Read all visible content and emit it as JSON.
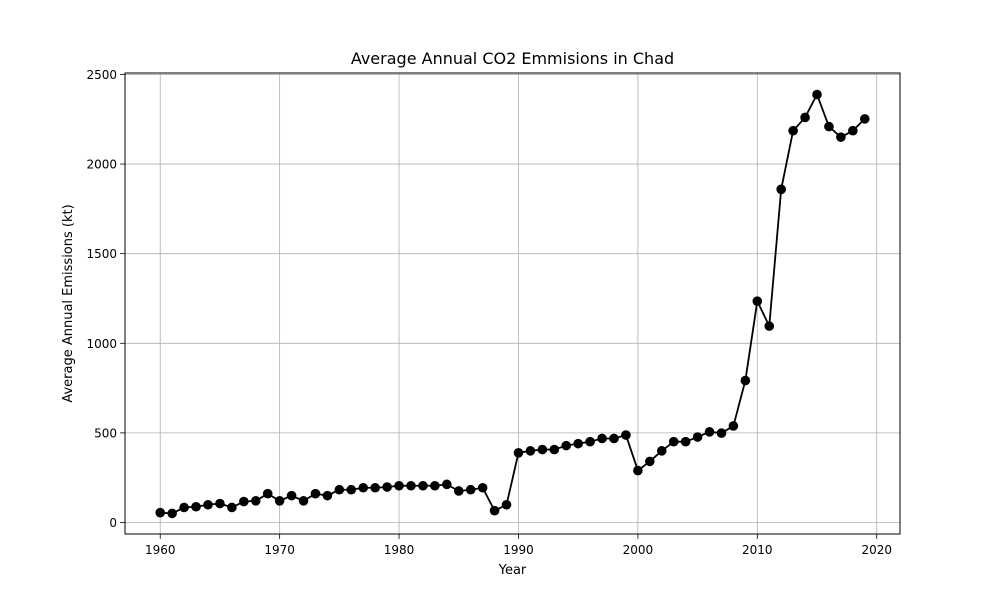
{
  "chart_data": {
    "type": "line",
    "title": "Average Annual CO2 Emmisions in Chad",
    "xlabel": "Year",
    "ylabel": "Average Annual Emissions (kt)",
    "xlim": [
      1957.05,
      2021.95
    ],
    "ylim": [
      -64,
      2508
    ],
    "grid": true,
    "x_ticks": [
      1960,
      1970,
      1980,
      1990,
      2000,
      2010,
      2020
    ],
    "y_ticks": [
      0,
      500,
      1000,
      1500,
      2000,
      2500
    ],
    "x_tick_labels": [
      "1960",
      "1970",
      "1980",
      "1990",
      "2000",
      "2010",
      "2020"
    ],
    "y_tick_labels": [
      "0",
      "500",
      "1000",
      "1500",
      "2000",
      "2500"
    ],
    "series": [
      {
        "name": "CO2 Emissions",
        "color": "#000000",
        "marker": "circle",
        "x": [
          1960,
          1961,
          1962,
          1963,
          1964,
          1965,
          1966,
          1967,
          1968,
          1969,
          1970,
          1971,
          1972,
          1973,
          1974,
          1975,
          1976,
          1977,
          1978,
          1979,
          1980,
          1981,
          1982,
          1983,
          1984,
          1985,
          1986,
          1987,
          1988,
          1989,
          1990,
          1991,
          1992,
          1993,
          1994,
          1995,
          1996,
          1997,
          1998,
          1999,
          2000,
          2001,
          2002,
          2003,
          2004,
          2005,
          2006,
          2007,
          2008,
          2009,
          2010,
          2011,
          2012,
          2013,
          2014,
          2015,
          2016,
          2017,
          2018,
          2019
        ],
        "y": [
          55,
          51,
          84,
          88,
          99,
          106,
          84,
          117,
          121,
          161,
          121,
          150,
          121,
          161,
          150,
          183,
          183,
          194,
          194,
          198,
          205,
          205,
          205,
          205,
          213,
          176,
          183,
          194,
          66,
          99,
          389,
          400,
          407,
          407,
          429,
          440,
          451,
          469,
          469,
          488,
          290,
          341,
          400,
          451,
          451,
          477,
          506,
          499,
          539,
          792,
          1235,
          1096,
          1859,
          2186,
          2260,
          2388,
          2209,
          2150,
          2186,
          2252
        ]
      }
    ]
  }
}
